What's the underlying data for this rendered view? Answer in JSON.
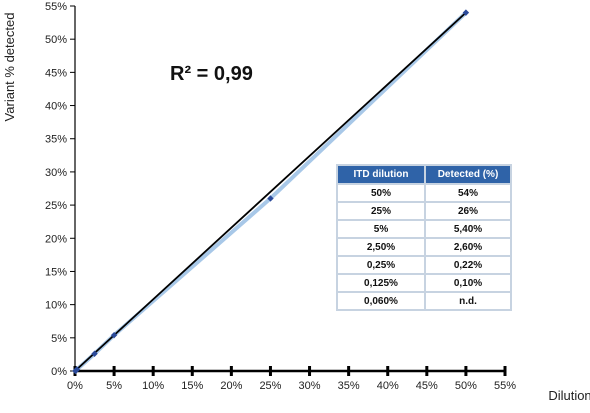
{
  "chart_data": {
    "type": "scatter",
    "ylabel": "Variant % detected",
    "xlabel": "Dilution",
    "annotation": "R² = 0,99",
    "x_ticks": [
      "0%",
      "5%",
      "10%",
      "15%",
      "20%",
      "25%",
      "30%",
      "35%",
      "40%",
      "45%",
      "50%",
      "55%"
    ],
    "y_ticks": [
      "0%",
      "5%",
      "10%",
      "15%",
      "20%",
      "25%",
      "30%",
      "35%",
      "40%",
      "45%",
      "50%",
      "55%"
    ],
    "xlim": [
      0,
      55
    ],
    "ylim": [
      0,
      55
    ],
    "points": [
      {
        "x": 0.06,
        "y": 0
      },
      {
        "x": 0.125,
        "y": 0.1
      },
      {
        "x": 0.25,
        "y": 0.22
      },
      {
        "x": 2.5,
        "y": 2.6
      },
      {
        "x": 5,
        "y": 5.4
      },
      {
        "x": 25,
        "y": 26
      },
      {
        "x": 50,
        "y": 54
      }
    ],
    "trendline": {
      "x": [
        0,
        50
      ],
      "y": [
        0,
        54
      ]
    },
    "colors": {
      "line": "#000000",
      "point": "#2b4a9a",
      "connector": "#a8c8e8"
    }
  },
  "table": {
    "headers": [
      "ITD dilution",
      "Detected (%)"
    ],
    "rows": [
      [
        "50%",
        "54%"
      ],
      [
        "25%",
        "26%"
      ],
      [
        "5%",
        "5,40%"
      ],
      [
        "2,50%",
        "2,60%"
      ],
      [
        "0,25%",
        "0,22%"
      ],
      [
        "0,125%",
        "0,10%"
      ],
      [
        "0,060%",
        "n.d."
      ]
    ],
    "colors": {
      "header_bg": "#2f63a8",
      "header_text": "#ffffff",
      "border": "#c7d3e1"
    }
  }
}
